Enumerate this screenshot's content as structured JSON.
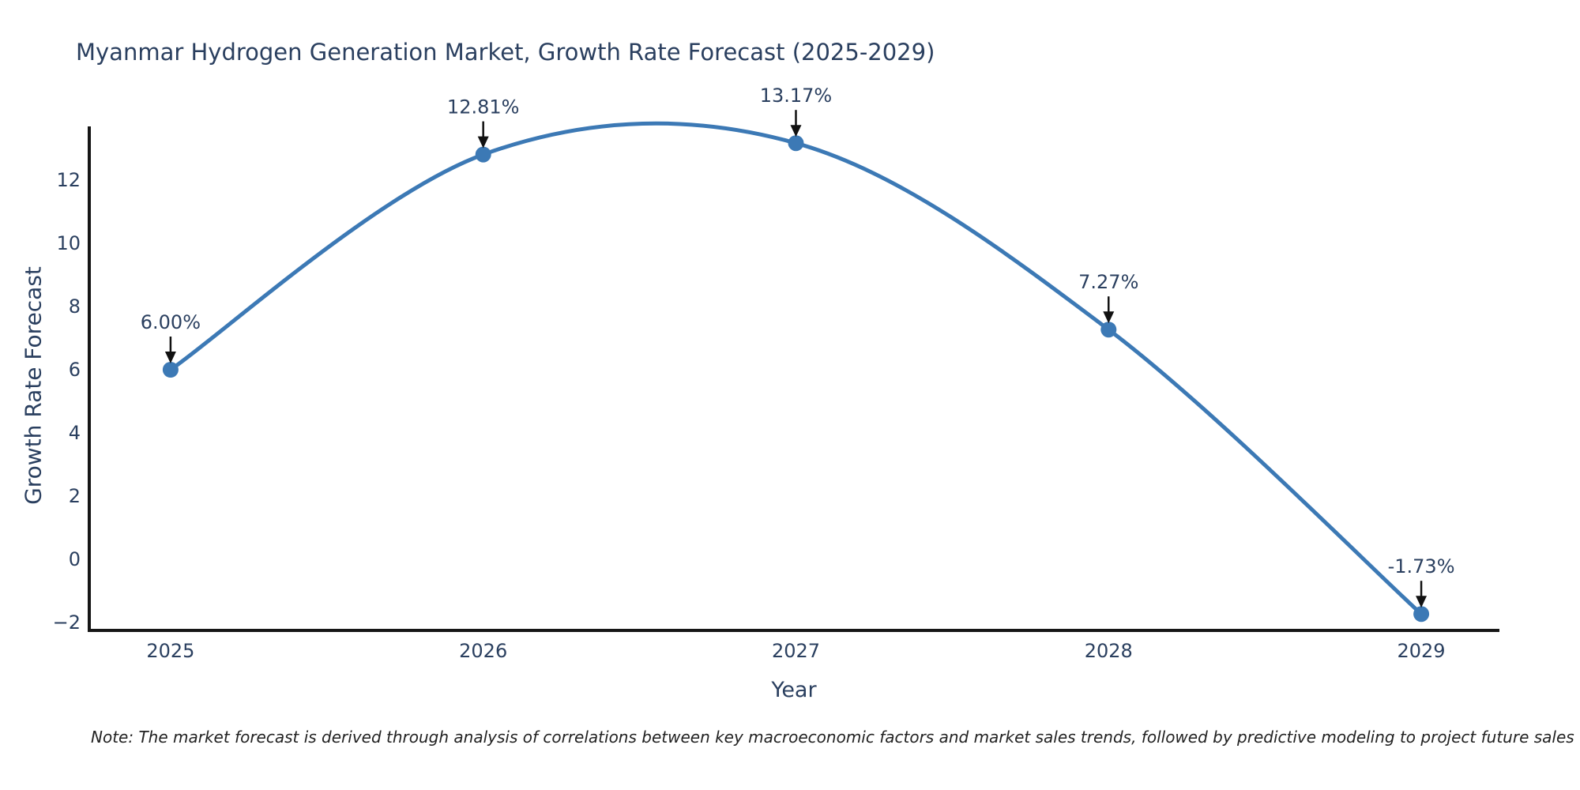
{
  "note": "Note: The market forecast is derived through analysis of correlations between key macroeconomic factors and market sales trends, followed by predictive modeling to project future sales",
  "chart_data": {
    "type": "line",
    "title": "Myanmar Hydrogen Generation Market, Growth Rate Forecast (2025-2029)",
    "xlabel": "Year",
    "ylabel": "Growth Rate Forecast",
    "x": [
      2025,
      2026,
      2027,
      2028,
      2029
    ],
    "series": [
      {
        "name": "Growth Rate Forecast",
        "values": [
          6.0,
          12.81,
          13.17,
          7.27,
          -1.73
        ]
      }
    ],
    "point_labels": [
      "6.00%",
      "12.81%",
      "13.17%",
      "7.27%",
      "-1.73%"
    ],
    "yticks": [
      -2,
      0,
      2,
      4,
      6,
      8,
      10,
      12
    ],
    "xlim": [
      2024.74,
      2029.25
    ],
    "ylim": [
      -2.25,
      13.7
    ],
    "grid": false,
    "legend": "none",
    "line_shape": "spline",
    "colors": {
      "line": "#3c79b5",
      "marker": "#3c79b5",
      "text": "#2a3f5f",
      "axis": "#161616",
      "arrow": "#111111"
    }
  }
}
